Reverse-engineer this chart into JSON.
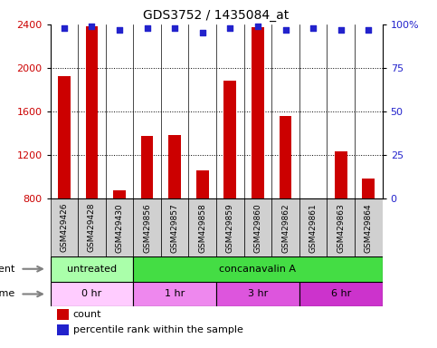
{
  "title": "GDS3752 / 1435084_at",
  "samples": [
    "GSM429426",
    "GSM429428",
    "GSM429430",
    "GSM429856",
    "GSM429857",
    "GSM429858",
    "GSM429859",
    "GSM429860",
    "GSM429862",
    "GSM429861",
    "GSM429863",
    "GSM429864"
  ],
  "counts": [
    1920,
    2380,
    870,
    1370,
    1380,
    1060,
    1880,
    2370,
    1560,
    770,
    1230,
    980
  ],
  "percentile": [
    98,
    99,
    97,
    98,
    98,
    95,
    98,
    99,
    97,
    98,
    97,
    97
  ],
  "ylim_left": [
    800,
    2400
  ],
  "ylim_right": [
    0,
    100
  ],
  "yticks_left": [
    800,
    1200,
    1600,
    2000,
    2400
  ],
  "yticks_right": [
    0,
    25,
    50,
    75,
    100
  ],
  "bar_color": "#cc0000",
  "dot_color": "#2222cc",
  "agent_untreated_color": "#aaffaa",
  "agent_concanavalin_color": "#44dd44",
  "time_0hr_color": "#ffccff",
  "time_1hr_color": "#ee88ee",
  "time_3hr_color": "#dd55dd",
  "time_6hr_color": "#cc33cc",
  "agent_untreated_label": "untreated",
  "agent_concanavalin_label": "concanavalin A",
  "agent_row_label": "agent",
  "time_row_label": "time",
  "legend_count_label": "count",
  "legend_percentile_label": "percentile rank within the sample",
  "bar_width": 0.45,
  "label_box_color": "#d0d0d0"
}
